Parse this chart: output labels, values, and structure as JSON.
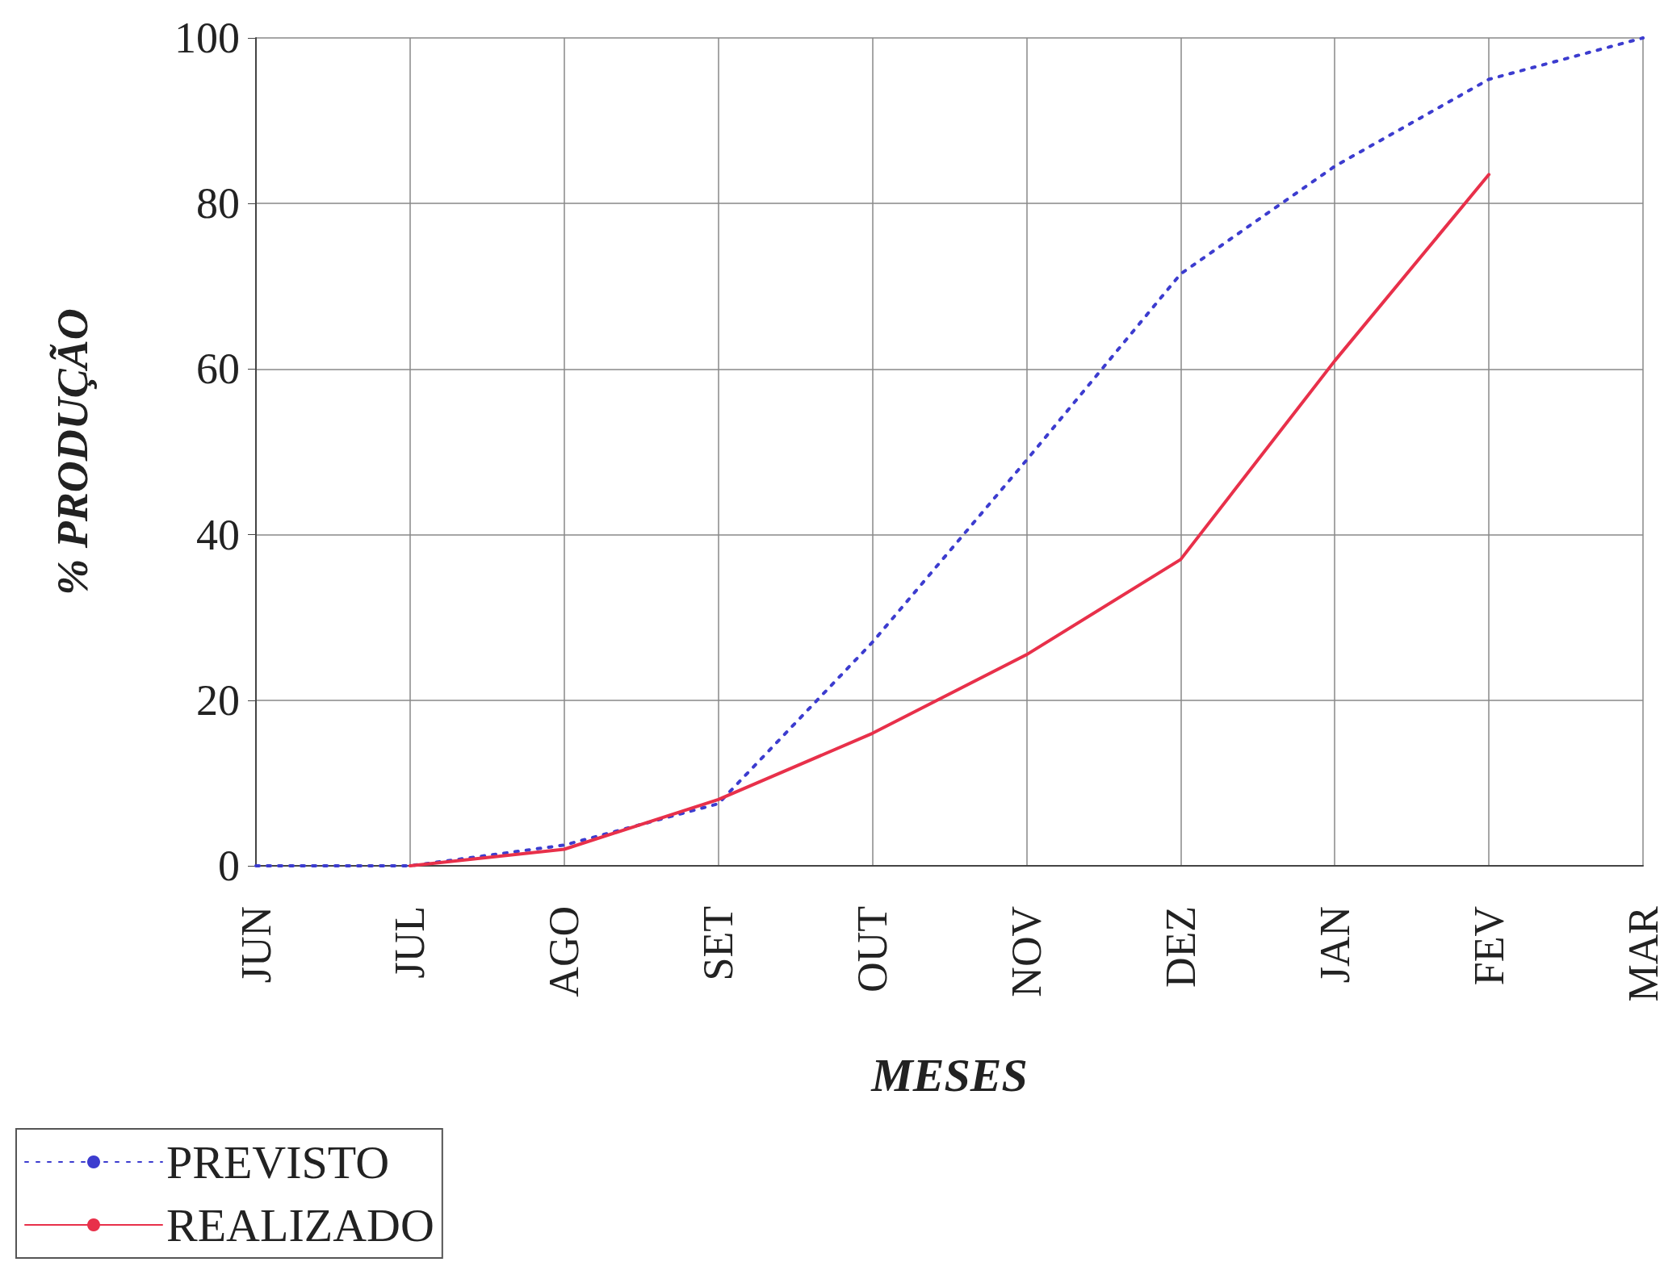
{
  "chart_data": {
    "type": "line",
    "xlabel": "MESES",
    "ylabel": "% PRODUÇÃO",
    "categories": [
      "JUN",
      "JUL",
      "AGO",
      "SET",
      "OUT",
      "NOV",
      "DEZ",
      "JAN",
      "FEV",
      "MAR"
    ],
    "series": [
      {
        "name": "PREVISTO",
        "color": "#3c3ccf",
        "line_style": "dotted",
        "values": [
          0,
          0,
          2.5,
          7.5,
          27,
          49,
          71.5,
          84.5,
          95,
          100
        ]
      },
      {
        "name": "REALIZADO",
        "color": "#e8304a",
        "line_style": "solid",
        "values": [
          null,
          0,
          2,
          8,
          16,
          25.5,
          37,
          61,
          83.5,
          null
        ]
      }
    ],
    "ylim": [
      0,
      100
    ],
    "yticks": [
      0,
      20,
      40,
      60,
      80,
      100
    ],
    "grid": true,
    "legend": "bottom left",
    "marker": "none"
  }
}
